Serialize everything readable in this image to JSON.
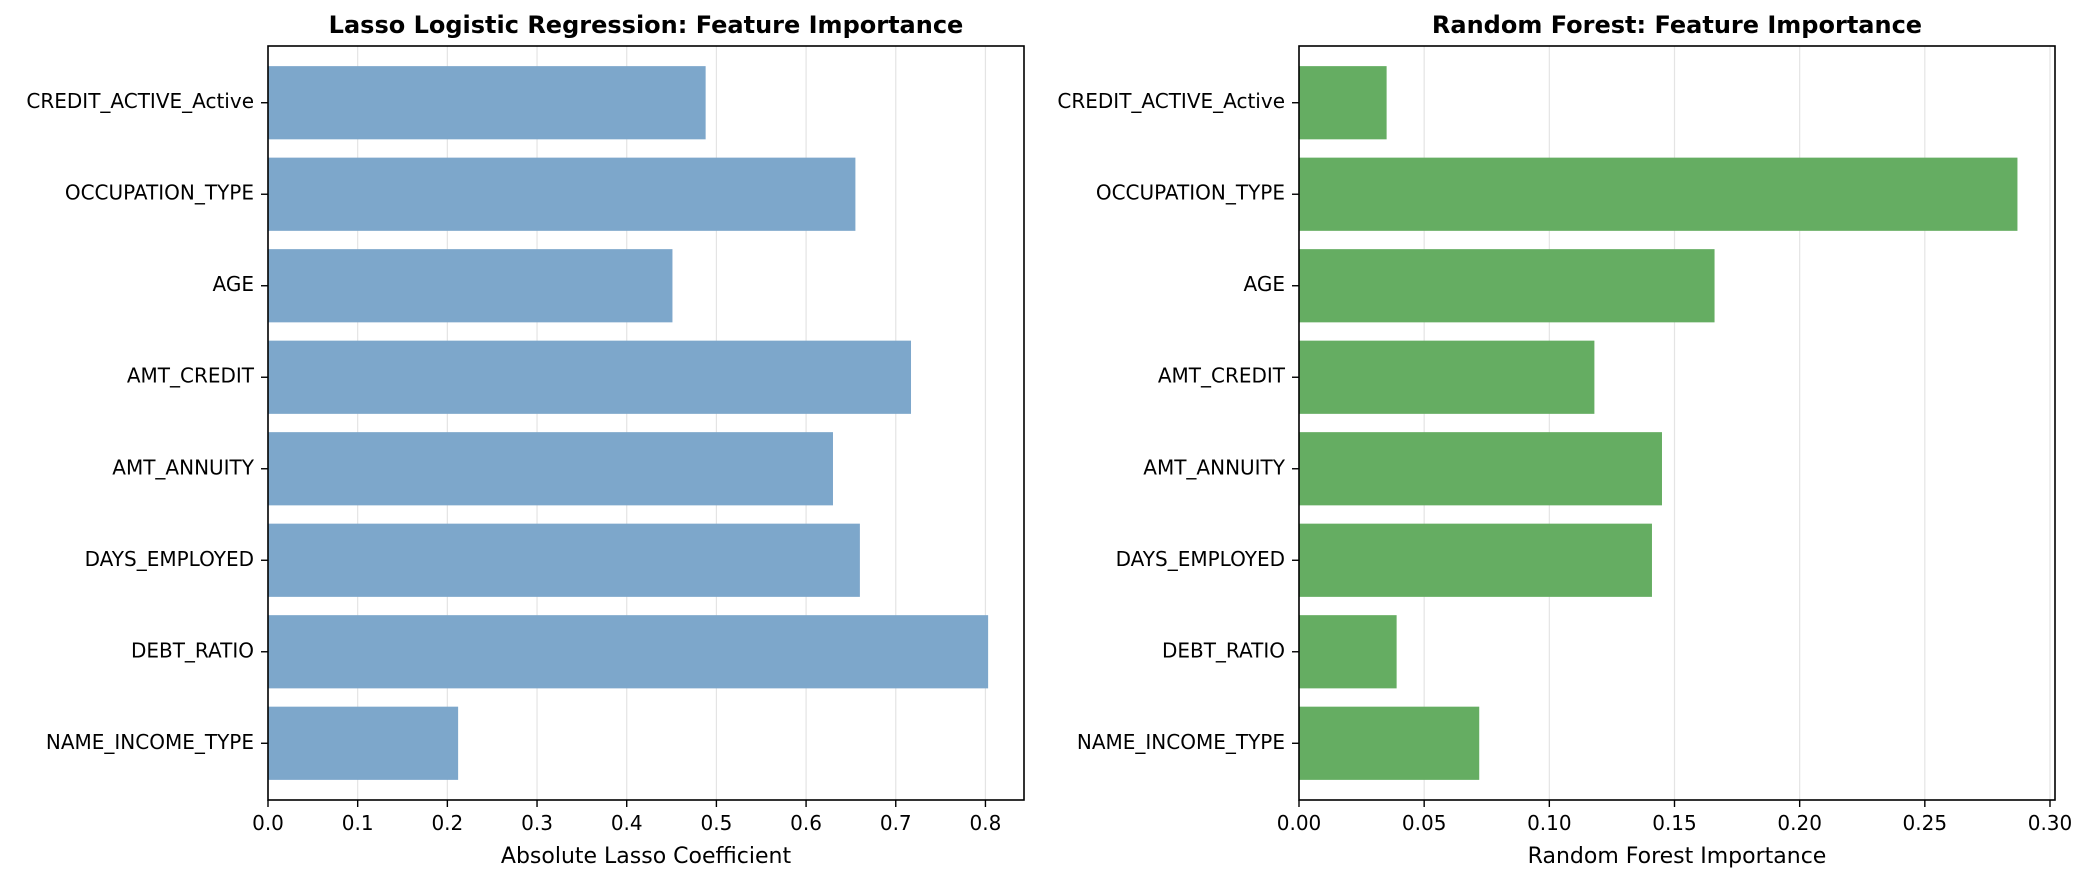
{
  "chart_data": [
    {
      "type": "bar",
      "orientation": "horizontal",
      "title": "Lasso Logistic Regression: Feature Importance",
      "xlabel": "Absolute Lasso Coefficient",
      "ylabel": "",
      "categories": [
        "CREDIT_ACTIVE_Active",
        "OCCUPATION_TYPE",
        "AGE",
        "AMT_CREDIT",
        "AMT_ANNUITY",
        "DAYS_EMPLOYED",
        "DEBT_RATIO",
        "NAME_INCOME_TYPE"
      ],
      "values": [
        0.488,
        0.655,
        0.451,
        0.717,
        0.63,
        0.66,
        0.803,
        0.212
      ],
      "xlim": [
        0,
        0.843
      ],
      "xticks": [
        0.0,
        0.1,
        0.2,
        0.3,
        0.4,
        0.5,
        0.6,
        0.7,
        0.8
      ],
      "xtick_labels": [
        "0.0",
        "0.1",
        "0.2",
        "0.3",
        "0.4",
        "0.5",
        "0.6",
        "0.7",
        "0.8"
      ],
      "color": "#7da7cb",
      "grid": "x"
    },
    {
      "type": "bar",
      "orientation": "horizontal",
      "title": "Random Forest: Feature Importance",
      "xlabel": "Random Forest Importance",
      "ylabel": "",
      "categories": [
        "CREDIT_ACTIVE_Active",
        "OCCUPATION_TYPE",
        "AGE",
        "AMT_CREDIT",
        "AMT_ANNUITY",
        "DAYS_EMPLOYED",
        "DEBT_RATIO",
        "NAME_INCOME_TYPE"
      ],
      "values": [
        0.035,
        0.287,
        0.166,
        0.118,
        0.145,
        0.141,
        0.039,
        0.072
      ],
      "xlim": [
        0,
        0.302
      ],
      "xticks": [
        0.0,
        0.05,
        0.1,
        0.15,
        0.2,
        0.25,
        0.3
      ],
      "xtick_labels": [
        "0.00",
        "0.05",
        "0.10",
        "0.15",
        "0.20",
        "0.25",
        "0.30"
      ],
      "color": "#65ad62",
      "grid": "x"
    }
  ]
}
